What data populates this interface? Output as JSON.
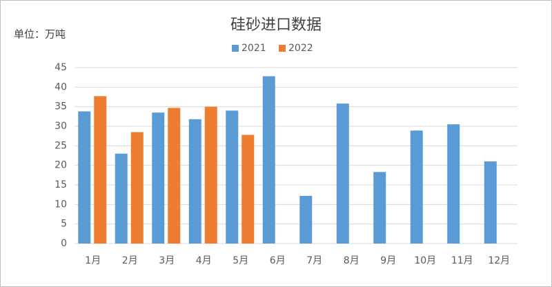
{
  "chart_data": {
    "type": "bar",
    "title": "硅砂进口数据",
    "unit_label": "单位：万吨",
    "categories": [
      "1月",
      "2月",
      "3月",
      "4月",
      "5月",
      "6月",
      "7月",
      "8月",
      "9月",
      "10月",
      "11月",
      "12月"
    ],
    "series": [
      {
        "name": "2021",
        "color": "#5b9bd5",
        "values": [
          33.8,
          23,
          33.5,
          31.8,
          34,
          42.8,
          12.2,
          35.8,
          18.3,
          28.9,
          30.5,
          21
        ]
      },
      {
        "name": "2022",
        "color": "#ed7d31",
        "values": [
          37.7,
          28.5,
          34.7,
          35,
          27.8,
          null,
          null,
          null,
          null,
          null,
          null,
          null
        ]
      }
    ],
    "ylim": [
      0,
      45
    ],
    "yticks": [
      0,
      5,
      10,
      15,
      20,
      25,
      30,
      35,
      40,
      45
    ],
    "grid": true,
    "legend": "top"
  }
}
